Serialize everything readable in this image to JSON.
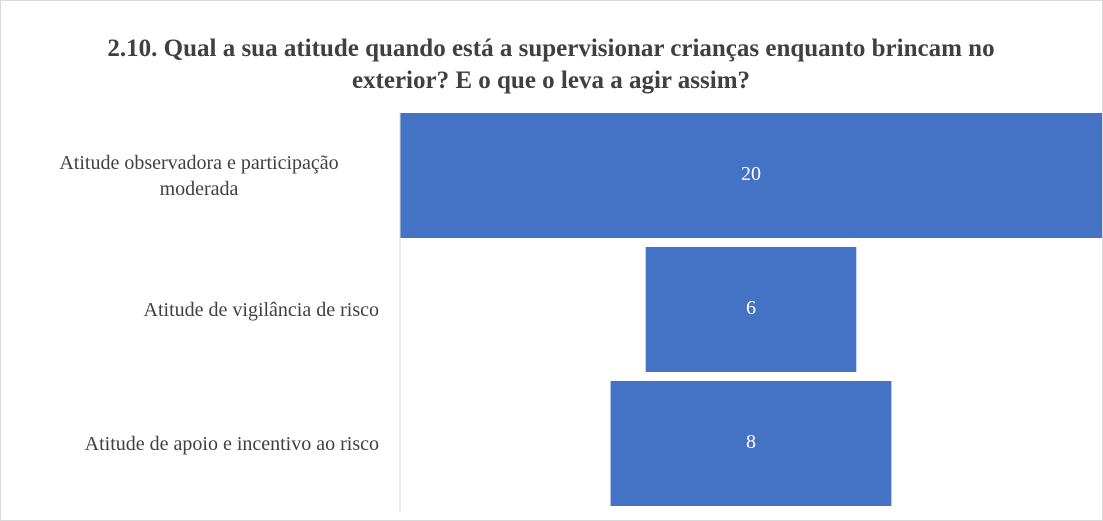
{
  "chart_data": {
    "type": "funnel",
    "title": "2.10. Qual a sua atitude quando está a supervisionar crianças enquanto brincam no exterior? E o que o leva a agir assim?",
    "categories": [
      "Atitude observadora e participação moderada",
      "Atitude de vigilância de risco",
      "Atitude de apoio e incentivo ao risco"
    ],
    "values": [
      20,
      6,
      8
    ],
    "color": "#4472c4"
  }
}
